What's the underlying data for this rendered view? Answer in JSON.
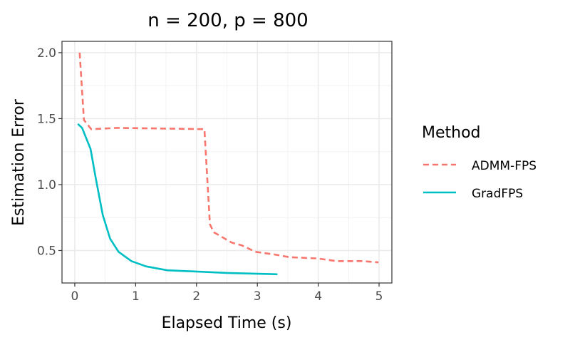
{
  "chart_data": {
    "type": "line",
    "title": "n = 200, p = 800",
    "xlabel": "Elapsed Time (s)",
    "ylabel": "Estimation Error",
    "xlim": [
      -0.21,
      5.21
    ],
    "ylim": [
      0.254,
      2.086
    ],
    "xticks": [
      0,
      1,
      2,
      3,
      4,
      5
    ],
    "xtick_labels": [
      "0",
      "1",
      "2",
      "3",
      "4",
      "5"
    ],
    "yticks": [
      0.5,
      1.0,
      1.5,
      2.0
    ],
    "ytick_labels": [
      "0.5",
      "1.0",
      "1.5",
      "2.0"
    ],
    "grid": true,
    "legend": {
      "title": "Method",
      "placement": "right"
    },
    "series": [
      {
        "name": "ADMM-FPS",
        "color": "#F8766D",
        "dash": "dashed",
        "x": [
          0.08,
          0.15,
          0.27,
          0.7,
          2.13,
          2.22,
          2.28,
          2.58,
          2.74,
          2.97,
          3.28,
          3.52,
          3.99,
          4.3,
          4.73,
          4.99
        ],
        "y": [
          2.0,
          1.49,
          1.42,
          1.43,
          1.42,
          0.7,
          0.64,
          0.56,
          0.54,
          0.49,
          0.47,
          0.45,
          0.44,
          0.42,
          0.42,
          0.41
        ]
      },
      {
        "name": "GradFPS",
        "color": "#00BFC4",
        "dash": "solid",
        "x": [
          0.05,
          0.12,
          0.26,
          0.34,
          0.46,
          0.58,
          0.72,
          0.93,
          1.17,
          1.52,
          2.03,
          2.5,
          3.33
        ],
        "y": [
          1.46,
          1.43,
          1.27,
          1.06,
          0.77,
          0.59,
          0.49,
          0.42,
          0.38,
          0.35,
          0.34,
          0.33,
          0.32
        ]
      }
    ]
  }
}
